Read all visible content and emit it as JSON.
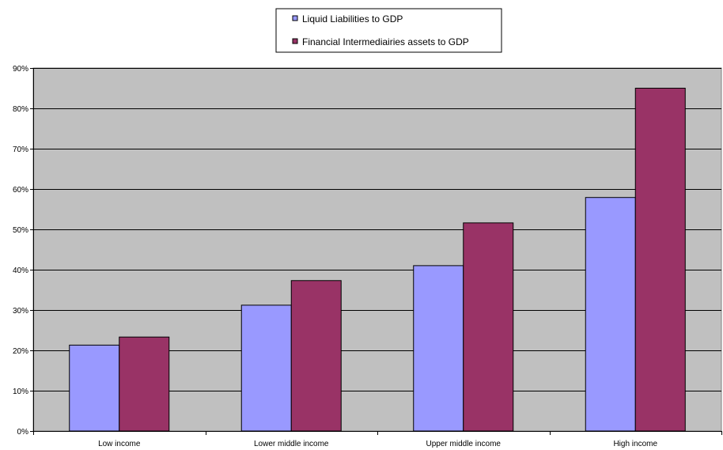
{
  "chart_data": {
    "type": "bar",
    "categories": [
      "Low income",
      "Lower middle income",
      "Upper middle income",
      "High income"
    ],
    "series": [
      {
        "name": "Liquid Liabilities to GDP",
        "color": "#9999ff",
        "values": [
          21.3,
          31.2,
          41.0,
          57.9
        ]
      },
      {
        "name": "Financial Intermediairies assets to GDP",
        "color": "#993366",
        "values": [
          23.3,
          37.3,
          51.6,
          85.0
        ]
      }
    ],
    "ylim": [
      0,
      90
    ],
    "yticks": [
      0,
      10,
      20,
      30,
      40,
      50,
      60,
      70,
      80,
      90
    ],
    "ytick_labels": [
      "0%",
      "10%",
      "20%",
      "30%",
      "40%",
      "50%",
      "60%",
      "70%",
      "80%",
      "90%"
    ],
    "grid": true,
    "plot_background": "#c0c0c0",
    "legend_position": "top-center"
  }
}
